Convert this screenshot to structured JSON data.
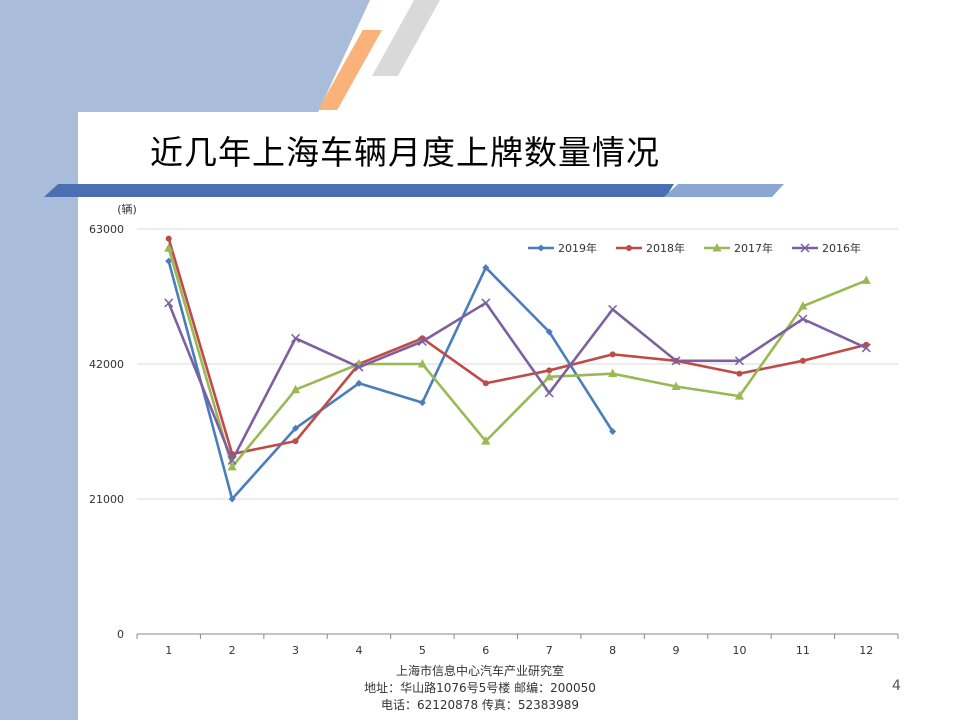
{
  "slide": {
    "title": "近几年上海车辆月度上牌数量情况",
    "page_number": "4",
    "footer": {
      "line1": "上海市信息中心汽车产业研究室",
      "line2": "地址：华山路1076号5号楼    邮编：200050",
      "line3": "电话：62120878  传真：52383989"
    }
  },
  "chart_data": {
    "type": "line",
    "ylabel": "(辆)",
    "xlabel": "",
    "x": [
      1,
      2,
      3,
      4,
      5,
      6,
      7,
      8,
      9,
      10,
      11,
      12
    ],
    "ylim": [
      0,
      63000
    ],
    "yticks": [
      0,
      21000,
      42000,
      63000
    ],
    "ytick_labels": [
      "0",
      "21000",
      "42000",
      "63000"
    ],
    "grid": true,
    "legend_position": "top-right",
    "series": [
      {
        "name": "2019年",
        "color": "#4a7ebb",
        "marker": "diamond",
        "values": [
          58000,
          21000,
          32000,
          39000,
          36000,
          57000,
          47000,
          31500,
          null,
          null,
          null,
          null
        ]
      },
      {
        "name": "2018年",
        "color": "#be4b48",
        "marker": "circle",
        "values": [
          61500,
          28000,
          30000,
          42000,
          46000,
          39000,
          41000,
          43500,
          42500,
          40500,
          42500,
          45000
        ]
      },
      {
        "name": "2017年",
        "color": "#98b954",
        "marker": "triangle",
        "values": [
          60000,
          26000,
          38000,
          42000,
          42000,
          30000,
          40000,
          40500,
          38500,
          37000,
          51000,
          55000
        ]
      },
      {
        "name": "2016年",
        "color": "#7d60a0",
        "marker": "x",
        "values": [
          51500,
          27000,
          46000,
          41500,
          45500,
          51500,
          37500,
          50500,
          42500,
          42500,
          49000,
          44500
        ]
      }
    ]
  }
}
